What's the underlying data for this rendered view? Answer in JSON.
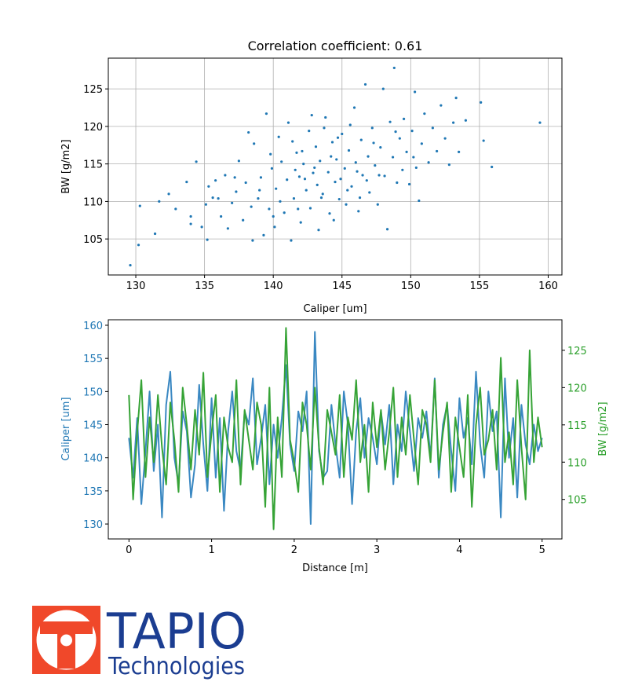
{
  "colors": {
    "caliper": "#1f77b4",
    "bw": "#2ca02c",
    "logo_red": "#f0482a",
    "logo_blue": "#1b3d91"
  },
  "logo": {
    "brand": "TAPIO",
    "sub": "Technologies"
  },
  "chart_data": [
    {
      "type": "scatter",
      "title": "Correlation coefficient: 0.61",
      "xlabel": "Caliper [um]",
      "ylabel": "BW [g/m2]",
      "xlim": [
        128,
        161
      ],
      "ylim": [
        100.2,
        129.1
      ],
      "xticks": [
        130,
        135,
        140,
        145,
        150,
        155,
        160
      ],
      "yticks": [
        105,
        110,
        115,
        120,
        125
      ],
      "grid": true,
      "points": [
        [
          129.6,
          101.5
        ],
        [
          130.2,
          104.2
        ],
        [
          130.3,
          109.4
        ],
        [
          131.4,
          105.7
        ],
        [
          131.7,
          110
        ],
        [
          132.4,
          111
        ],
        [
          132.9,
          109
        ],
        [
          133.7,
          112.6
        ],
        [
          134,
          108
        ],
        [
          134,
          107
        ],
        [
          134.4,
          115.3
        ],
        [
          134.8,
          106.6
        ],
        [
          135.1,
          109.6
        ],
        [
          135.2,
          104.9
        ],
        [
          135.3,
          112
        ],
        [
          135.6,
          110.5
        ],
        [
          135.8,
          112.8
        ],
        [
          136.2,
          108
        ],
        [
          136.5,
          113.5
        ],
        [
          136.7,
          106.4
        ],
        [
          137,
          109.8
        ],
        [
          137.3,
          111.3
        ],
        [
          137.5,
          115.4
        ],
        [
          137.8,
          107.5
        ],
        [
          138,
          112.5
        ],
        [
          138.2,
          119.2
        ],
        [
          138.5,
          104.8
        ],
        [
          138.6,
          117.7
        ],
        [
          138.9,
          110.4
        ],
        [
          139.1,
          113.2
        ],
        [
          139.3,
          105.5
        ],
        [
          139.5,
          121.7
        ],
        [
          139.7,
          109
        ],
        [
          139.9,
          114.4
        ],
        [
          140.1,
          106.6
        ],
        [
          140.2,
          111.7
        ],
        [
          140.4,
          118.6
        ],
        [
          140.6,
          115.3
        ],
        [
          140.8,
          108.5
        ],
        [
          141,
          112.9
        ],
        [
          141.1,
          120.5
        ],
        [
          141.3,
          104.8
        ],
        [
          141.5,
          110.4
        ],
        [
          141.7,
          116.5
        ],
        [
          141.9,
          113.3
        ],
        [
          142,
          107.2
        ],
        [
          142.2,
          115
        ],
        [
          142.4,
          111.5
        ],
        [
          142.6,
          119.4
        ],
        [
          142.7,
          109.1
        ],
        [
          142.9,
          113.8
        ],
        [
          143.1,
          117.3
        ],
        [
          143.3,
          106.2
        ],
        [
          143.4,
          115.4
        ],
        [
          143.6,
          111
        ],
        [
          143.8,
          121.2
        ],
        [
          144,
          113.9
        ],
        [
          144.1,
          108.4
        ],
        [
          144.3,
          117.9
        ],
        [
          144.5,
          112.6
        ],
        [
          144.6,
          115.6
        ],
        [
          144.8,
          110.3
        ],
        [
          145,
          119
        ],
        [
          145.2,
          114.4
        ],
        [
          145.3,
          109.6
        ],
        [
          145.5,
          116.8
        ],
        [
          145.7,
          112
        ],
        [
          145.9,
          122.5
        ],
        [
          146,
          115.2
        ],
        [
          146.2,
          108.7
        ],
        [
          146.4,
          118.2
        ],
        [
          146.5,
          113.5
        ],
        [
          146.7,
          125.6
        ],
        [
          146.9,
          116
        ],
        [
          147,
          111.2
        ],
        [
          147.2,
          119.8
        ],
        [
          147.4,
          114.8
        ],
        [
          147.6,
          109.6
        ],
        [
          147.8,
          117.2
        ],
        [
          148,
          125
        ],
        [
          148.1,
          113.4
        ],
        [
          148.3,
          106.3
        ],
        [
          148.5,
          120.6
        ],
        [
          148.7,
          115.9
        ],
        [
          148.8,
          127.8
        ],
        [
          149,
          112.5
        ],
        [
          149.2,
          118.4
        ],
        [
          149.4,
          114.2
        ],
        [
          149.5,
          121
        ],
        [
          149.7,
          116.6
        ],
        [
          149.9,
          112.3
        ],
        [
          150.1,
          119.4
        ],
        [
          150.3,
          124.6
        ],
        [
          150.4,
          114.5
        ],
        [
          150.6,
          110.1
        ],
        [
          150.8,
          117.7
        ],
        [
          151,
          121.7
        ],
        [
          151.3,
          115.2
        ],
        [
          151.6,
          119.8
        ],
        [
          151.9,
          116.7
        ],
        [
          152.2,
          122.8
        ],
        [
          152.5,
          118.4
        ],
        [
          152.8,
          114.9
        ],
        [
          153.1,
          120.5
        ],
        [
          153.3,
          123.8
        ],
        [
          153.5,
          116.6
        ],
        [
          154,
          120.8
        ],
        [
          155.1,
          123.2
        ],
        [
          155.3,
          118.1
        ],
        [
          155.9,
          114.6
        ],
        [
          159.4,
          120.5
        ],
        [
          140.5,
          110
        ],
        [
          141.8,
          109
        ],
        [
          142.3,
          113
        ],
        [
          143,
          114.5
        ],
        [
          143.5,
          110.5
        ],
        [
          144.2,
          116
        ],
        [
          144.9,
          113
        ],
        [
          145.4,
          111.5
        ],
        [
          146.1,
          114
        ],
        [
          146.8,
          112.8
        ],
        [
          147.3,
          117.8
        ],
        [
          143.7,
          119.8
        ],
        [
          142.8,
          121.5
        ],
        [
          141.4,
          118
        ],
        [
          139.8,
          116.3
        ],
        [
          138.4,
          109.3
        ],
        [
          137.2,
          113.2
        ],
        [
          136,
          110.4
        ],
        [
          140,
          108
        ],
        [
          145.6,
          120.2
        ],
        [
          148.9,
          119.3
        ],
        [
          150.2,
          115.9
        ],
        [
          144.4,
          107.5
        ],
        [
          143.2,
          112.2
        ],
        [
          142.1,
          116.7
        ],
        [
          146.3,
          110.5
        ],
        [
          147.7,
          113.5
        ],
        [
          139,
          111.5
        ],
        [
          141.6,
          114.2
        ],
        [
          144.7,
          118.5
        ]
      ]
    },
    {
      "type": "line",
      "xlabel": "Distance [m]",
      "xlim": [
        -0.25,
        5.24
      ],
      "xticks": [
        0,
        1,
        2,
        3,
        4,
        5
      ],
      "x_step": 0.05,
      "grid": false,
      "left": {
        "label": "Caliper [um]",
        "ylim": [
          127.75,
          160.83
        ],
        "yticks": [
          130,
          135,
          140,
          145,
          150,
          155,
          160
        ],
        "values": [
          143,
          137,
          146,
          133,
          141,
          150,
          138,
          145,
          131,
          148,
          153,
          140,
          136,
          147,
          144,
          134,
          139,
          151,
          142,
          135,
          149,
          137,
          146,
          132,
          144,
          150,
          141,
          138,
          147,
          145,
          152,
          139,
          143,
          148,
          136,
          145,
          140,
          146,
          154,
          142,
          138,
          147,
          144,
          150,
          130,
          159,
          141,
          137,
          138,
          148,
          142,
          137,
          150,
          145,
          133,
          144,
          149,
          140,
          146,
          143,
          139,
          147,
          142,
          148,
          136,
          145,
          141,
          150,
          144,
          138,
          146,
          143,
          147,
          140,
          152,
          137,
          145,
          148,
          141,
          135,
          149,
          143,
          146,
          139,
          153,
          142,
          137,
          150,
          144,
          147,
          131,
          152,
          140,
          146,
          134,
          148,
          142,
          139,
          145,
          141,
          143
        ]
      },
      "right": {
        "label": "BW [g/m2]",
        "ylim": [
          99.7,
          129.1
        ],
        "yticks": [
          105,
          110,
          115,
          120,
          125
        ],
        "values": [
          119,
          105,
          114,
          121,
          108,
          116,
          110,
          119,
          112,
          107,
          118,
          113,
          106,
          120,
          115,
          109,
          117,
          111,
          122,
          108,
          114,
          119,
          106,
          116,
          112,
          110,
          121,
          107,
          117,
          113,
          109,
          118,
          115,
          104,
          120,
          101,
          116,
          108,
          128,
          113,
          110,
          106,
          118,
          115,
          109,
          120,
          112,
          107,
          117,
          114,
          111,
          119,
          108,
          116,
          113,
          121,
          110,
          115,
          106,
          118,
          112,
          117,
          109,
          114,
          120,
          108,
          116,
          111,
          119,
          113,
          107,
          117,
          115,
          110,
          121,
          109,
          114,
          118,
          106,
          116,
          112,
          108,
          119,
          104,
          115,
          120,
          111,
          113,
          117,
          109,
          124,
          110,
          114,
          107,
          121,
          112,
          105,
          125,
          110,
          116,
          112
        ]
      }
    }
  ]
}
